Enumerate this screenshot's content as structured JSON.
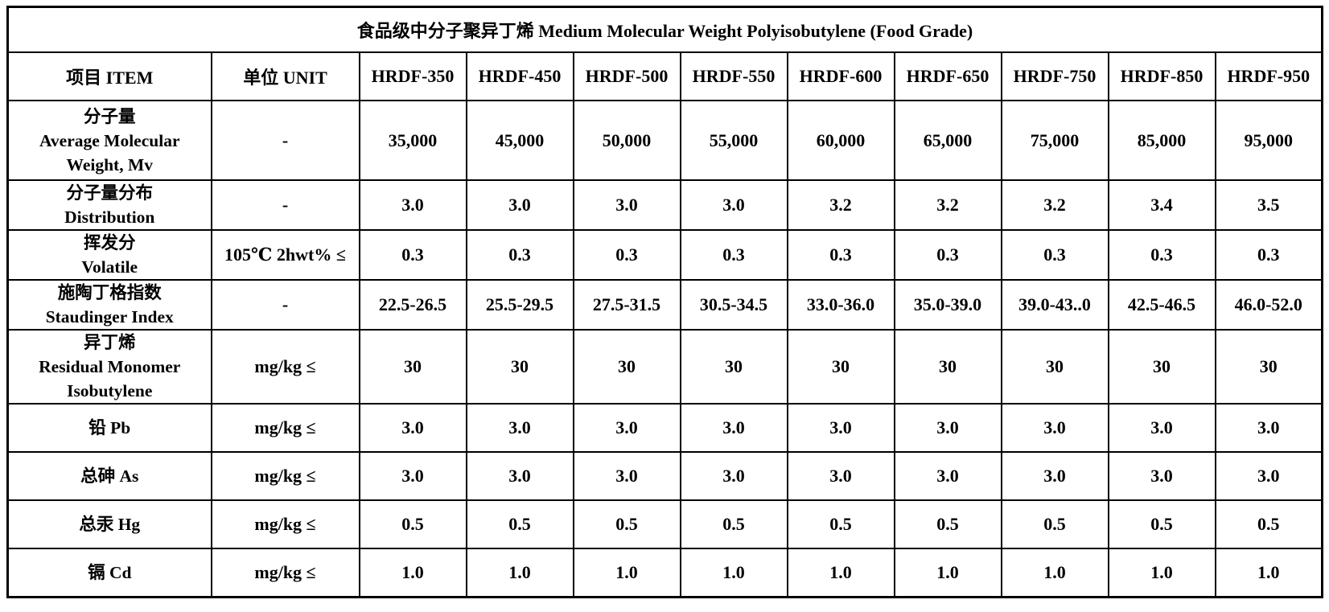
{
  "title": "食品级中分子聚异丁烯 Medium Molecular Weight Polyisobutylene (Food Grade)",
  "colors": {
    "border": "#000000",
    "text": "#000000",
    "background": "#ffffff"
  },
  "table": {
    "header": {
      "item": "项目 ITEM",
      "unit": "单位  UNIT",
      "grades": [
        "HRDF-350",
        "HRDF-450",
        "HRDF-500",
        "HRDF-550",
        "HRDF-600",
        "HRDF-650",
        "HRDF-750",
        "HRDF-850",
        "HRDF-950"
      ]
    },
    "rows": [
      {
        "item_lines": [
          "分子量",
          "Average Molecular",
          "Weight, Mv"
        ],
        "unit": "-",
        "height": "tall",
        "values": [
          "35,000",
          "45,000",
          "50,000",
          "55,000",
          "60,000",
          "65,000",
          "75,000",
          "85,000",
          "95,000"
        ]
      },
      {
        "item_lines": [
          "分子量分布",
          "Distribution"
        ],
        "unit": "-",
        "height": "normal",
        "values": [
          "3.0",
          "3.0",
          "3.0",
          "3.0",
          "3.2",
          "3.2",
          "3.2",
          "3.4",
          "3.5"
        ]
      },
      {
        "item_lines": [
          "挥发分",
          "Volatile"
        ],
        "unit": "105℃ 2hwt% ≤",
        "height": "normal",
        "values": [
          "0.3",
          "0.3",
          "0.3",
          "0.3",
          "0.3",
          "0.3",
          "0.3",
          "0.3",
          "0.3"
        ]
      },
      {
        "item_lines": [
          "施陶丁格指数",
          "Staudinger Index"
        ],
        "unit": "-",
        "height": "normal",
        "values": [
          "22.5-26.5",
          "25.5-29.5",
          "27.5-31.5",
          "30.5-34.5",
          "33.0-36.0",
          "35.0-39.0",
          "39.0-43..0",
          "42.5-46.5",
          "46.0-52.0"
        ]
      },
      {
        "item_lines": [
          "异丁烯",
          "Residual Monomer",
          "Isobutylene"
        ],
        "unit": "mg/kg ≤",
        "height": "mid",
        "values": [
          "30",
          "30",
          "30",
          "30",
          "30",
          "30",
          "30",
          "30",
          "30"
        ]
      },
      {
        "item_lines": [
          "铅 Pb"
        ],
        "unit": "mg/kg ≤",
        "height": "normal",
        "values": [
          "3.0",
          "3.0",
          "3.0",
          "3.0",
          "3.0",
          "3.0",
          "3.0",
          "3.0",
          "3.0"
        ]
      },
      {
        "item_lines": [
          "总砷 As"
        ],
        "unit": "mg/kg ≤",
        "height": "normal",
        "values": [
          "3.0",
          "3.0",
          "3.0",
          "3.0",
          "3.0",
          "3.0",
          "3.0",
          "3.0",
          "3.0"
        ]
      },
      {
        "item_lines": [
          "总汞 Hg"
        ],
        "unit": "mg/kg ≤",
        "height": "normal",
        "values": [
          "0.5",
          "0.5",
          "0.5",
          "0.5",
          "0.5",
          "0.5",
          "0.5",
          "0.5",
          "0.5"
        ]
      },
      {
        "item_lines": [
          "镉 Cd"
        ],
        "unit": "mg/kg ≤",
        "height": "normal",
        "values": [
          "1.0",
          "1.0",
          "1.0",
          "1.0",
          "1.0",
          "1.0",
          "1.0",
          "1.0",
          "1.0"
        ]
      }
    ]
  }
}
